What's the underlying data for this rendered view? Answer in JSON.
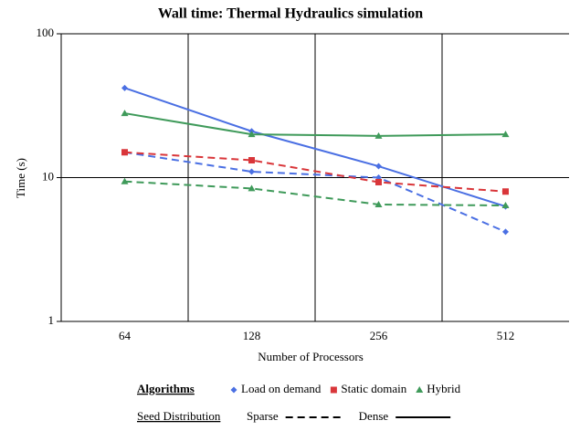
{
  "chart_data": {
    "type": "line",
    "title": "Wall time: Thermal Hydraulics simulation",
    "x_label": "Number of Processors",
    "y_label": "Time (s)",
    "categories": [
      "64",
      "128",
      "256",
      "512"
    ],
    "log_y": true,
    "ylim": [
      1,
      100
    ],
    "yticks": [
      1,
      10,
      100
    ],
    "grid": true,
    "legend": {
      "algorithms_title": "Algorithms",
      "algorithms": [
        {
          "name": "Load on demand",
          "color": "#4a6fe3",
          "marker": "diamond"
        },
        {
          "name": "Static domain",
          "color": "#d9363a",
          "marker": "square"
        },
        {
          "name": "Hybrid",
          "color": "#3f9a5a",
          "marker": "triangle"
        }
      ],
      "seed_title": "Seed Distribution",
      "seeds": [
        {
          "name": "Sparse",
          "dashed": true
        },
        {
          "name": "Dense",
          "dashed": false
        }
      ]
    },
    "series": [
      {
        "algorithm": 0,
        "seed": 1,
        "values": [
          42,
          21,
          12,
          6.3
        ]
      },
      {
        "algorithm": 0,
        "seed": 0,
        "values": [
          15,
          11,
          10,
          4.2
        ]
      },
      {
        "algorithm": 1,
        "seed": 0,
        "values": [
          15,
          13.2,
          9.3,
          8
        ]
      },
      {
        "algorithm": 2,
        "seed": 1,
        "values": [
          28,
          20,
          19.5,
          20
        ]
      },
      {
        "algorithm": 2,
        "seed": 0,
        "values": [
          9.4,
          8.4,
          6.5,
          6.4
        ]
      }
    ]
  }
}
